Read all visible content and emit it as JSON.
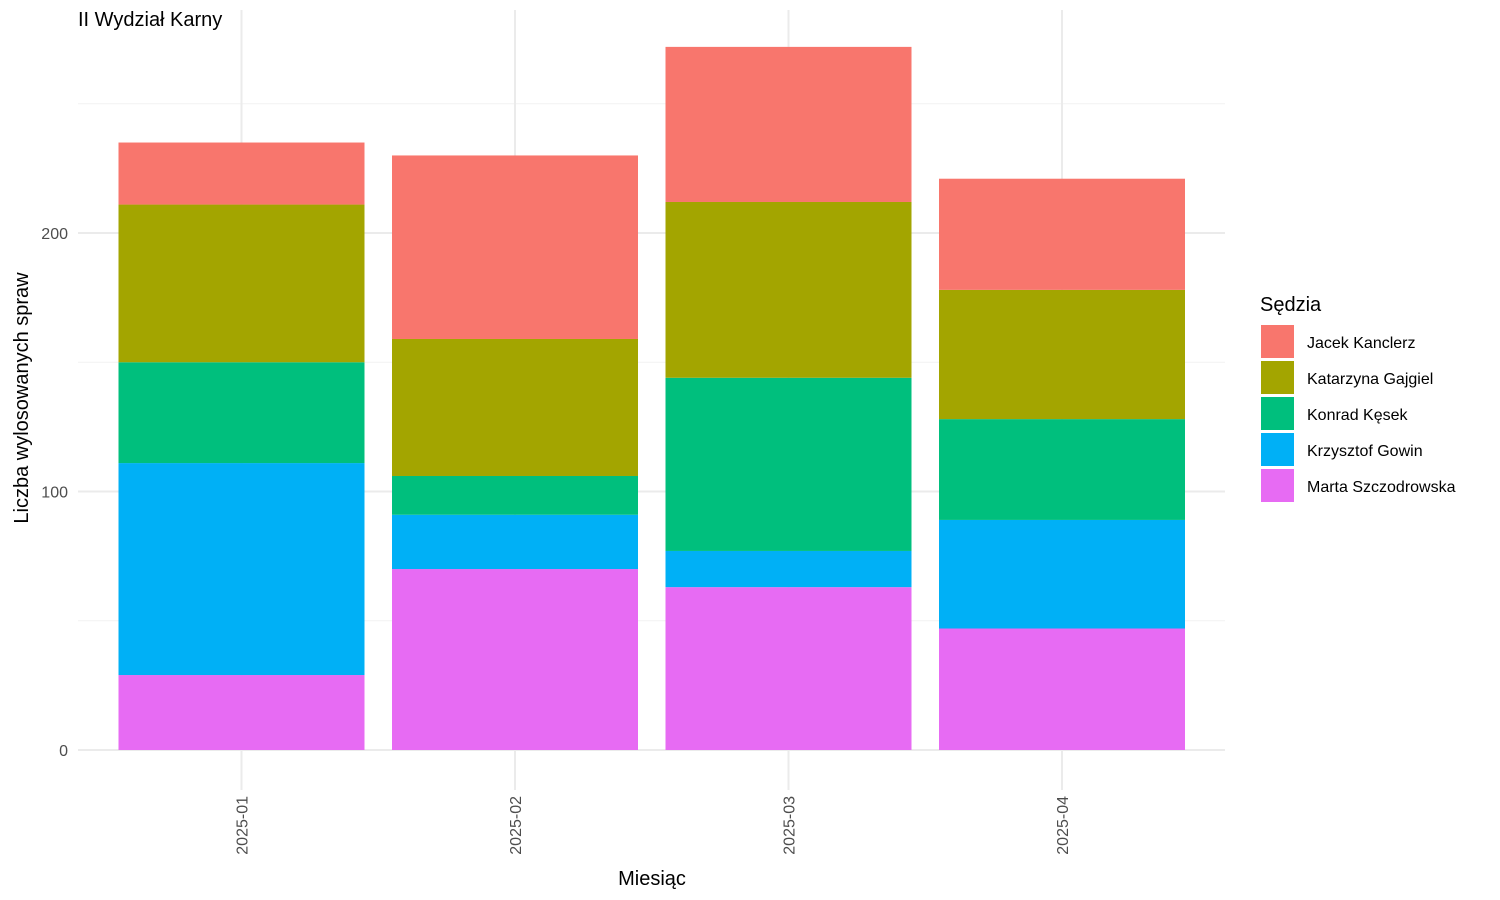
{
  "chart_data": {
    "type": "bar",
    "stacked": true,
    "title": "II Wydział Karny",
    "xlabel": "Miesiąc",
    "ylabel": "Liczba wylosowanych spraw",
    "ylim": [
      0,
      280
    ],
    "yticks": [
      0,
      100,
      200
    ],
    "grid": true,
    "legend_position": "right",
    "legend_title": "Sędzia",
    "categories": [
      "2025-01",
      "2025-02",
      "2025-03",
      "2025-04"
    ],
    "series": [
      {
        "name": "Marta Szczodrowska",
        "color": "#E76BF3",
        "values": [
          29,
          70,
          63,
          47
        ]
      },
      {
        "name": "Krzysztof Gowin",
        "color": "#00B0F6",
        "values": [
          82,
          21,
          14,
          42
        ]
      },
      {
        "name": "Konrad Kęsek",
        "color": "#00BF7D",
        "values": [
          39,
          15,
          67,
          39
        ]
      },
      {
        "name": "Katarzyna Gajgiel",
        "color": "#A3A500",
        "values": [
          61,
          53,
          68,
          50
        ]
      },
      {
        "name": "Jacek Kanclerz",
        "color": "#F8766D",
        "values": [
          24,
          71,
          60,
          43
        ]
      }
    ],
    "legend_order": [
      "Jacek Kanclerz",
      "Katarzyna Gajgiel",
      "Konrad Kęsek",
      "Krzysztof Gowin",
      "Marta Szczodrowska"
    ]
  }
}
